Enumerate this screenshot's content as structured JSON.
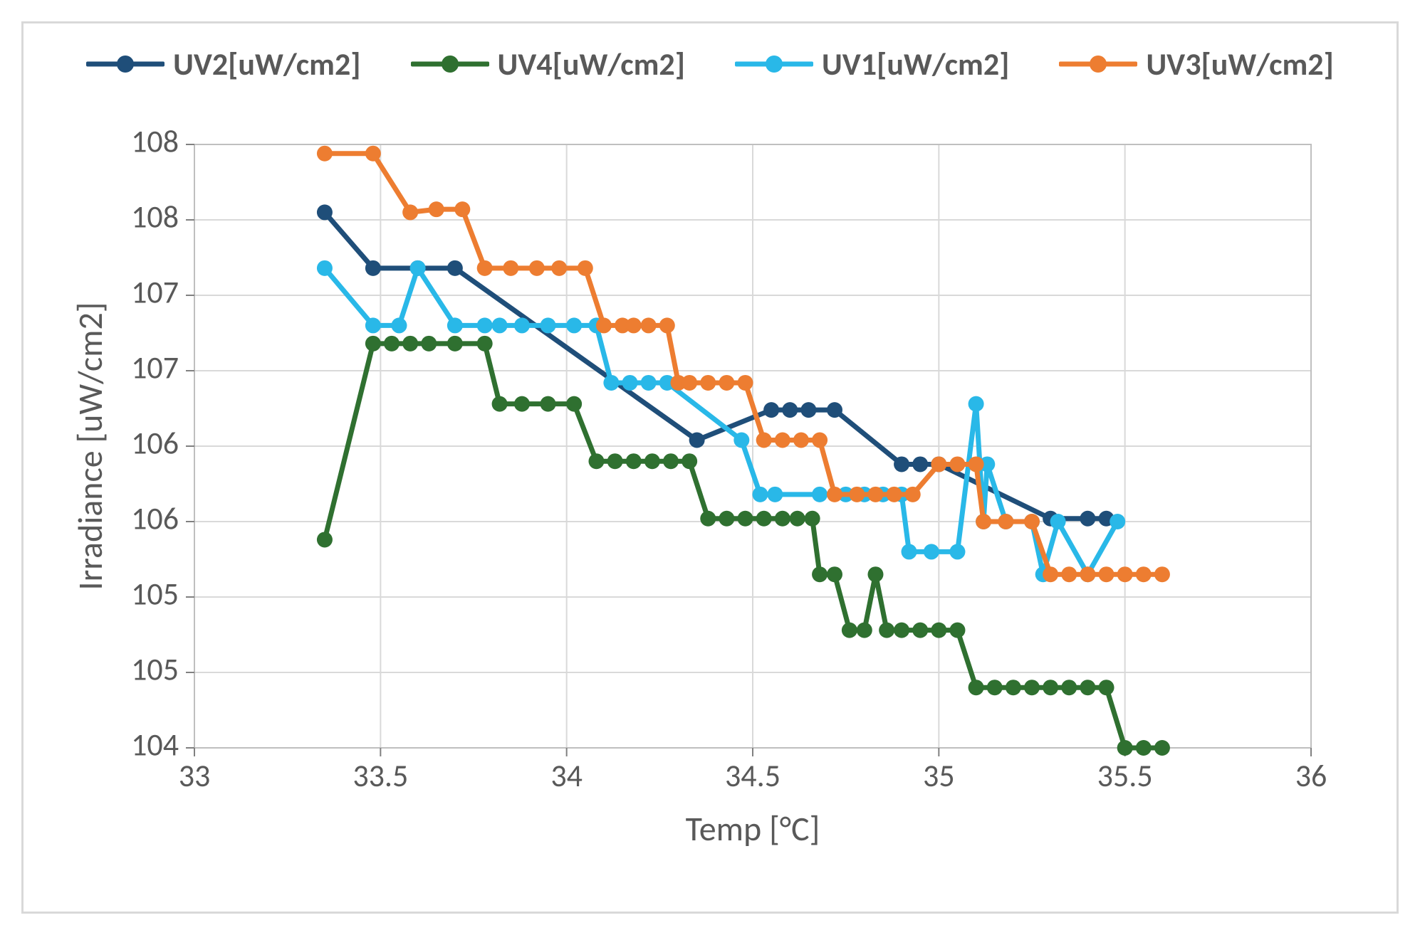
{
  "chart": {
    "type": "line-scatter",
    "background_color": "#ffffff",
    "panel_border_color": "#d9d9d9",
    "plot_border_color": "#bfbfbf",
    "grid_color": "#d9d9d9",
    "tick_color": "#808080",
    "axis_line_color": "#bfbfbf",
    "axis_text_color": "#595959",
    "xlabel": "Temp [°C]",
    "ylabel": "Irradiance  [uW/cm2]",
    "label_fontsize": 48,
    "tick_fontsize": 44,
    "legend_fontsize": 44,
    "line_width": 7,
    "marker_radius": 11,
    "xlim": [
      33,
      36
    ],
    "x_ticks": [
      33,
      33.5,
      34,
      34.5,
      35,
      35.5,
      36
    ],
    "x_tick_labels": [
      "33",
      "33.5",
      "34",
      "34.5",
      "35",
      "35.5",
      "36"
    ],
    "ylim": [
      104,
      108
    ],
    "y_ticks": [
      104,
      104.5,
      105,
      105.5,
      106,
      106.5,
      107,
      107.5,
      108
    ],
    "y_tick_labels": [
      "104",
      "105",
      "105",
      "106",
      "106",
      "107",
      "107",
      "108",
      "108"
    ],
    "series": [
      {
        "id": "uv2",
        "label": "UV2[uW/cm2]",
        "color": "#1f4e79",
        "points": [
          [
            33.35,
            107.55
          ],
          [
            33.48,
            107.18
          ],
          [
            33.6,
            107.18
          ],
          [
            33.7,
            107.18
          ],
          [
            34.35,
            106.04
          ],
          [
            34.55,
            106.24
          ],
          [
            34.6,
            106.24
          ],
          [
            34.65,
            106.24
          ],
          [
            34.72,
            106.24
          ],
          [
            34.9,
            105.88
          ],
          [
            34.95,
            105.88
          ],
          [
            35.0,
            105.88
          ],
          [
            35.3,
            105.52
          ],
          [
            35.4,
            105.52
          ],
          [
            35.45,
            105.52
          ]
        ]
      },
      {
        "id": "uv4",
        "label": "UV4[uW/cm2]",
        "color": "#2f7030",
        "points": [
          [
            33.35,
            105.38
          ],
          [
            33.48,
            106.68
          ],
          [
            33.53,
            106.68
          ],
          [
            33.58,
            106.68
          ],
          [
            33.63,
            106.68
          ],
          [
            33.7,
            106.68
          ],
          [
            33.78,
            106.68
          ],
          [
            33.82,
            106.28
          ],
          [
            33.88,
            106.28
          ],
          [
            33.95,
            106.28
          ],
          [
            34.02,
            106.28
          ],
          [
            34.08,
            105.9
          ],
          [
            34.13,
            105.9
          ],
          [
            34.18,
            105.9
          ],
          [
            34.23,
            105.9
          ],
          [
            34.28,
            105.9
          ],
          [
            34.33,
            105.9
          ],
          [
            34.38,
            105.52
          ],
          [
            34.43,
            105.52
          ],
          [
            34.48,
            105.52
          ],
          [
            34.53,
            105.52
          ],
          [
            34.58,
            105.52
          ],
          [
            34.62,
            105.52
          ],
          [
            34.66,
            105.52
          ],
          [
            34.68,
            105.15
          ],
          [
            34.72,
            105.15
          ],
          [
            34.76,
            104.78
          ],
          [
            34.8,
            104.78
          ],
          [
            34.83,
            105.15
          ],
          [
            34.86,
            104.78
          ],
          [
            34.9,
            104.78
          ],
          [
            34.95,
            104.78
          ],
          [
            35.0,
            104.78
          ],
          [
            35.05,
            104.78
          ],
          [
            35.1,
            104.4
          ],
          [
            35.15,
            104.4
          ],
          [
            35.2,
            104.4
          ],
          [
            35.25,
            104.4
          ],
          [
            35.3,
            104.4
          ],
          [
            35.35,
            104.4
          ],
          [
            35.4,
            104.4
          ],
          [
            35.45,
            104.4
          ],
          [
            35.5,
            104.0
          ],
          [
            35.55,
            104.0
          ],
          [
            35.6,
            104.0
          ]
        ]
      },
      {
        "id": "uv1",
        "label": "UV1[uW/cm2]",
        "color": "#29b8e8",
        "points": [
          [
            33.35,
            107.18
          ],
          [
            33.48,
            106.8
          ],
          [
            33.55,
            106.8
          ],
          [
            33.6,
            107.18
          ],
          [
            33.7,
            106.8
          ],
          [
            33.78,
            106.8
          ],
          [
            33.82,
            106.8
          ],
          [
            33.88,
            106.8
          ],
          [
            33.95,
            106.8
          ],
          [
            34.02,
            106.8
          ],
          [
            34.08,
            106.8
          ],
          [
            34.12,
            106.42
          ],
          [
            34.17,
            106.42
          ],
          [
            34.22,
            106.42
          ],
          [
            34.27,
            106.42
          ],
          [
            34.47,
            106.04
          ],
          [
            34.52,
            105.68
          ],
          [
            34.56,
            105.68
          ],
          [
            34.68,
            105.68
          ],
          [
            34.75,
            105.68
          ],
          [
            34.8,
            105.68
          ],
          [
            34.85,
            105.68
          ],
          [
            34.9,
            105.68
          ],
          [
            34.92,
            105.3
          ],
          [
            34.98,
            105.3
          ],
          [
            35.05,
            105.3
          ],
          [
            35.1,
            106.28
          ],
          [
            35.12,
            105.5
          ],
          [
            35.13,
            105.88
          ],
          [
            35.18,
            105.5
          ],
          [
            35.25,
            105.5
          ],
          [
            35.28,
            105.15
          ],
          [
            35.32,
            105.5
          ],
          [
            35.4,
            105.15
          ],
          [
            35.48,
            105.5
          ]
        ]
      },
      {
        "id": "uv3",
        "label": "UV3[uW/cm2]",
        "color": "#ed7d31",
        "points": [
          [
            33.35,
            107.94
          ],
          [
            33.48,
            107.94
          ],
          [
            33.58,
            107.55
          ],
          [
            33.65,
            107.57
          ],
          [
            33.72,
            107.57
          ],
          [
            33.78,
            107.18
          ],
          [
            33.85,
            107.18
          ],
          [
            33.92,
            107.18
          ],
          [
            33.98,
            107.18
          ],
          [
            34.05,
            107.18
          ],
          [
            34.1,
            106.8
          ],
          [
            34.15,
            106.8
          ],
          [
            34.18,
            106.8
          ],
          [
            34.22,
            106.8
          ],
          [
            34.27,
            106.8
          ],
          [
            34.3,
            106.42
          ],
          [
            34.33,
            106.42
          ],
          [
            34.38,
            106.42
          ],
          [
            34.43,
            106.42
          ],
          [
            34.48,
            106.42
          ],
          [
            34.53,
            106.04
          ],
          [
            34.58,
            106.04
          ],
          [
            34.63,
            106.04
          ],
          [
            34.68,
            106.04
          ],
          [
            34.72,
            105.68
          ],
          [
            34.78,
            105.68
          ],
          [
            34.83,
            105.68
          ],
          [
            34.88,
            105.68
          ],
          [
            34.93,
            105.68
          ],
          [
            35.0,
            105.88
          ],
          [
            35.05,
            105.88
          ],
          [
            35.1,
            105.88
          ],
          [
            35.12,
            105.5
          ],
          [
            35.18,
            105.5
          ],
          [
            35.25,
            105.5
          ],
          [
            35.3,
            105.15
          ],
          [
            35.35,
            105.15
          ],
          [
            35.4,
            105.15
          ],
          [
            35.45,
            105.15
          ],
          [
            35.5,
            105.15
          ],
          [
            35.55,
            105.15
          ],
          [
            35.6,
            105.15
          ]
        ]
      }
    ]
  }
}
